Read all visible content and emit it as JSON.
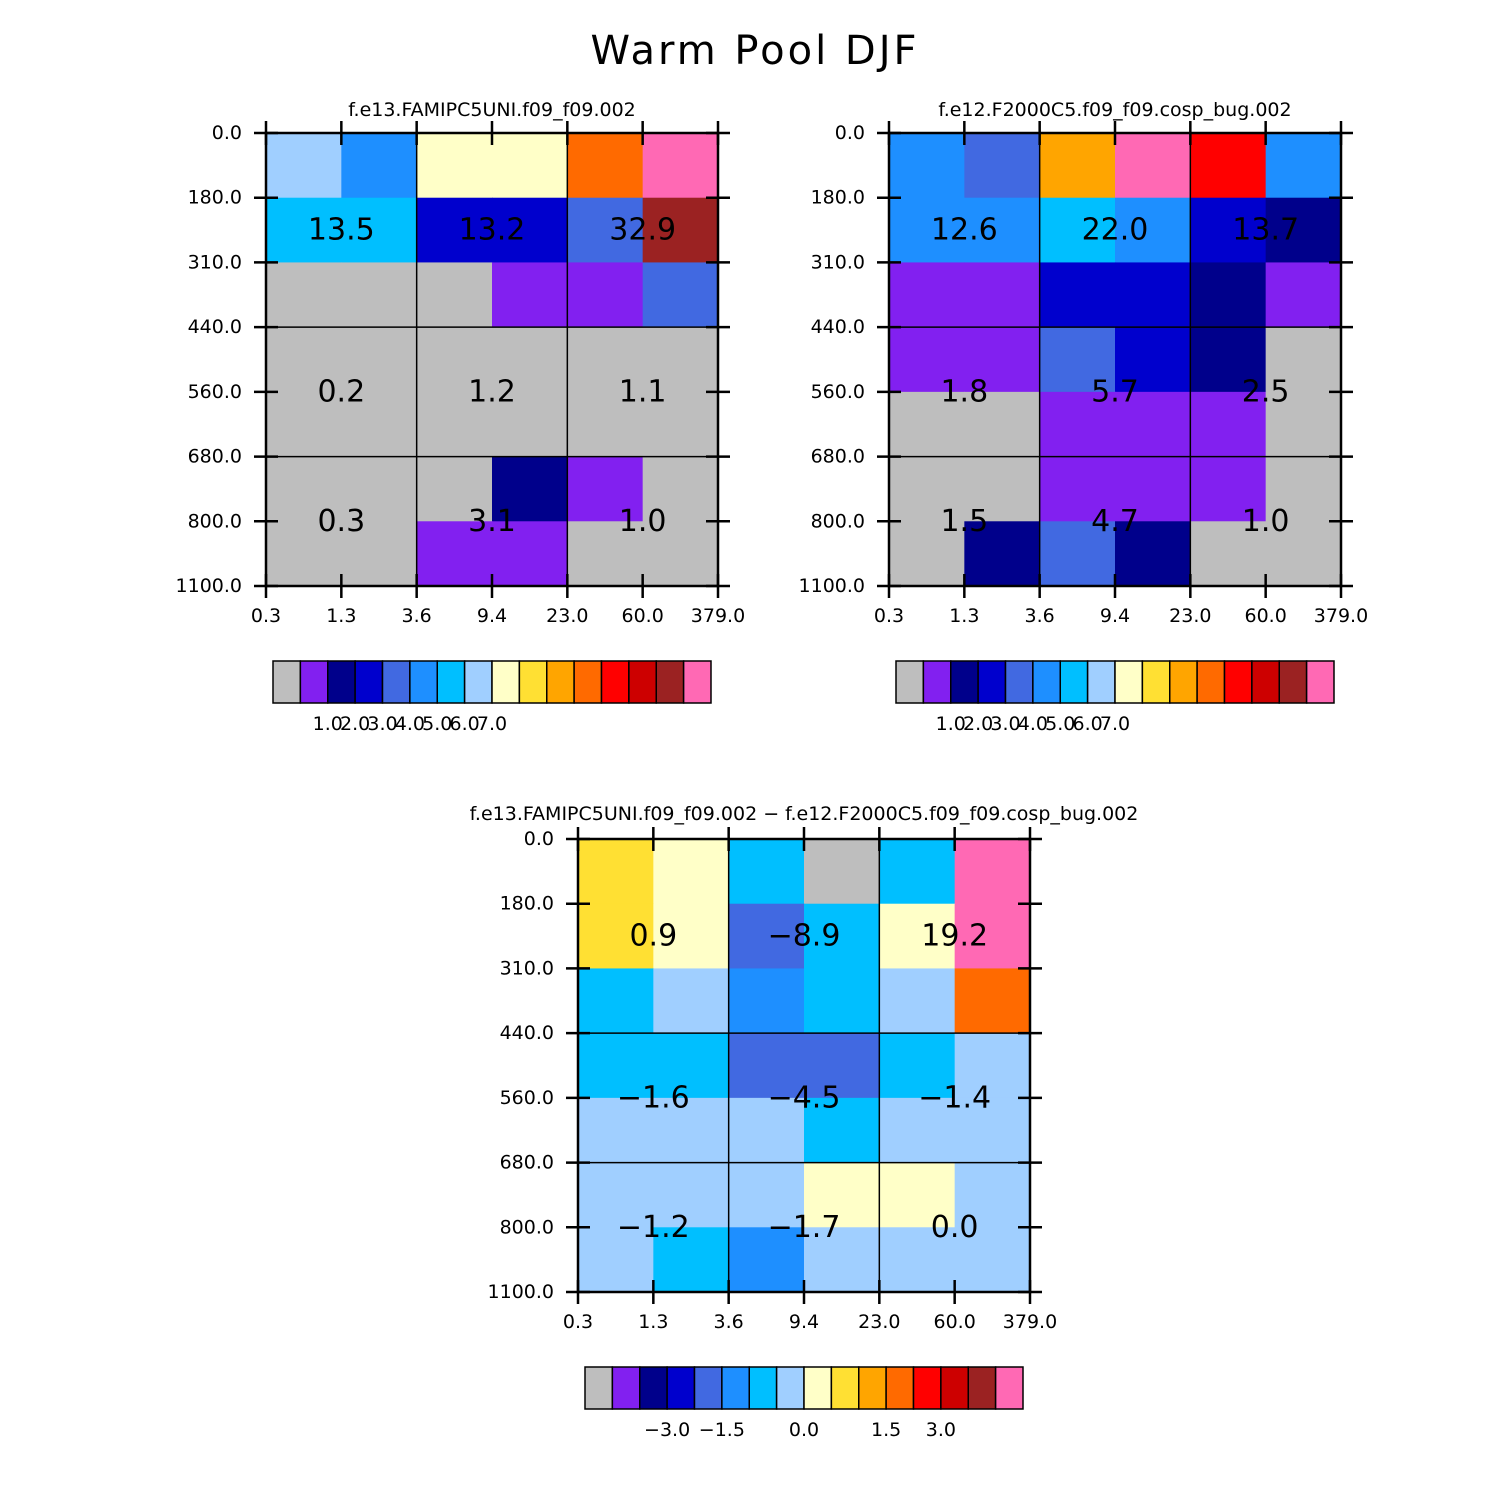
{
  "title": "Warm Pool DJF",
  "chart_data": [
    {
      "type": "heatmap",
      "title": "f.e13.FAMIPC5UNI.f09_f09.002",
      "xlabel": "",
      "ylabel": "",
      "x_tick_labels": [
        "0.3",
        "1.3",
        "3.6",
        "9.4",
        "23.0",
        "60.0",
        "379.0"
      ],
      "y_tick_labels": [
        "0.0",
        "180.0",
        "310.0",
        "440.0",
        "560.0",
        "680.0",
        "800.0",
        "1100.0"
      ],
      "cell_colors": [
        [
          "#A0CFFF",
          "#1E8FFF",
          "#FFFFC8",
          "#FFFFC8",
          "#FF6A00",
          "#FF69B4"
        ],
        [
          "#00BFFF",
          "#00BFFF",
          "#0000CD",
          "#0000CD",
          "#4169E1",
          "#9B2222"
        ],
        [
          "#BEBEBE",
          "#BEBEBE",
          "#BEBEBE",
          "#8220F0",
          "#8220F0",
          "#4169E1"
        ],
        [
          "#BEBEBE",
          "#BEBEBE",
          "#BEBEBE",
          "#BEBEBE",
          "#BEBEBE",
          "#BEBEBE"
        ],
        [
          "#BEBEBE",
          "#BEBEBE",
          "#BEBEBE",
          "#BEBEBE",
          "#BEBEBE",
          "#BEBEBE"
        ],
        [
          "#BEBEBE",
          "#BEBEBE",
          "#BEBEBE",
          "#00008B",
          "#8220F0",
          "#BEBEBE"
        ],
        [
          "#BEBEBE",
          "#BEBEBE",
          "#8220F0",
          "#8220F0",
          "#BEBEBE",
          "#BEBEBE"
        ]
      ],
      "block_labels": [
        [
          "13.5",
          "13.2",
          "32.9"
        ],
        [
          "0.2",
          "1.2",
          "1.1"
        ],
        [
          "0.3",
          "3.1",
          "1.0"
        ]
      ],
      "colorbar": {
        "colors": [
          "#BEBEBE",
          "#8220F0",
          "#00008B",
          "#0000CD",
          "#4169E1",
          "#1E8FFF",
          "#00BFFF",
          "#A0CFFF",
          "#FFFFC8",
          "#FFE033",
          "#FFA500",
          "#FF6A00",
          "#FF0000",
          "#CD0000",
          "#9B2222",
          "#FF69B4"
        ],
        "tick_labels": [
          "1.0",
          "2.0",
          "3.0",
          "4.0",
          "5.0",
          "6.0",
          "7.0"
        ]
      }
    },
    {
      "type": "heatmap",
      "title": "f.e12.F2000C5.f09_f09.cosp_bug.002",
      "xlabel": "",
      "ylabel": "",
      "x_tick_labels": [
        "0.3",
        "1.3",
        "3.6",
        "9.4",
        "23.0",
        "60.0",
        "379.0"
      ],
      "y_tick_labels": [
        "0.0",
        "180.0",
        "310.0",
        "440.0",
        "560.0",
        "680.0",
        "800.0",
        "1100.0"
      ],
      "cell_colors": [
        [
          "#1E8FFF",
          "#4169E1",
          "#FFA500",
          "#FF69B4",
          "#FF0000",
          "#1E8FFF"
        ],
        [
          "#1E8FFF",
          "#1E8FFF",
          "#00BFFF",
          "#1E8FFF",
          "#0000CD",
          "#00008B"
        ],
        [
          "#8220F0",
          "#8220F0",
          "#0000CD",
          "#0000CD",
          "#00008B",
          "#8220F0"
        ],
        [
          "#8220F0",
          "#8220F0",
          "#4169E1",
          "#0000CD",
          "#00008B",
          "#BEBEBE"
        ],
        [
          "#BEBEBE",
          "#BEBEBE",
          "#8220F0",
          "#8220F0",
          "#8220F0",
          "#BEBEBE"
        ],
        [
          "#BEBEBE",
          "#BEBEBE",
          "#8220F0",
          "#8220F0",
          "#8220F0",
          "#BEBEBE"
        ],
        [
          "#BEBEBE",
          "#00008B",
          "#4169E1",
          "#00008B",
          "#BEBEBE",
          "#BEBEBE"
        ]
      ],
      "block_labels": [
        [
          "12.6",
          "22.0",
          "13.7"
        ],
        [
          "1.8",
          "5.7",
          "2.5"
        ],
        [
          "1.5",
          "4.7",
          "1.0"
        ]
      ],
      "colorbar": {
        "colors": [
          "#BEBEBE",
          "#8220F0",
          "#00008B",
          "#0000CD",
          "#4169E1",
          "#1E8FFF",
          "#00BFFF",
          "#A0CFFF",
          "#FFFFC8",
          "#FFE033",
          "#FFA500",
          "#FF6A00",
          "#FF0000",
          "#CD0000",
          "#9B2222",
          "#FF69B4"
        ],
        "tick_labels": [
          "1.0",
          "2.0",
          "3.0",
          "4.0",
          "5.0",
          "6.0",
          "7.0"
        ]
      }
    },
    {
      "type": "heatmap",
      "title": "f.e13.FAMIPC5UNI.f09_f09.002 − f.e12.F2000C5.f09_f09.cosp_bug.002",
      "xlabel": "",
      "ylabel": "",
      "x_tick_labels": [
        "0.3",
        "1.3",
        "3.6",
        "9.4",
        "23.0",
        "60.0",
        "379.0"
      ],
      "y_tick_labels": [
        "0.0",
        "180.0",
        "310.0",
        "440.0",
        "560.0",
        "680.0",
        "800.0",
        "1100.0"
      ],
      "cell_colors": [
        [
          "#FFE033",
          "#FFFFC8",
          "#00BFFF",
          "#BEBEBE",
          "#00BFFF",
          "#FF69B4"
        ],
        [
          "#FFE033",
          "#FFFFC8",
          "#4169E1",
          "#00BFFF",
          "#FFFFC8",
          "#FF69B4"
        ],
        [
          "#00BFFF",
          "#A0CFFF",
          "#1E8FFF",
          "#00BFFF",
          "#A0CFFF",
          "#FF6A00"
        ],
        [
          "#00BFFF",
          "#00BFFF",
          "#4169E1",
          "#4169E1",
          "#00BFFF",
          "#A0CFFF"
        ],
        [
          "#A0CFFF",
          "#A0CFFF",
          "#A0CFFF",
          "#00BFFF",
          "#A0CFFF",
          "#A0CFFF"
        ],
        [
          "#A0CFFF",
          "#A0CFFF",
          "#A0CFFF",
          "#FFFFC8",
          "#FFFFC8",
          "#A0CFFF"
        ],
        [
          "#A0CFFF",
          "#00BFFF",
          "#1E8FFF",
          "#A0CFFF",
          "#A0CFFF",
          "#A0CFFF"
        ]
      ],
      "block_labels": [
        [
          "0.9",
          "−8.9",
          "19.2"
        ],
        [
          "−1.6",
          "−4.5",
          "−1.4"
        ],
        [
          "−1.2",
          "−1.7",
          "0.0"
        ]
      ],
      "colorbar": {
        "colors": [
          "#BEBEBE",
          "#8220F0",
          "#00008B",
          "#0000CD",
          "#4169E1",
          "#1E8FFF",
          "#00BFFF",
          "#A0CFFF",
          "#FFFFC8",
          "#FFE033",
          "#FFA500",
          "#FF6A00",
          "#FF0000",
          "#CD0000",
          "#9B2222",
          "#FF69B4"
        ],
        "tick_labels": [
          "−3.0",
          "−1.5",
          "0.0",
          "1.5",
          "3.0"
        ]
      }
    }
  ]
}
